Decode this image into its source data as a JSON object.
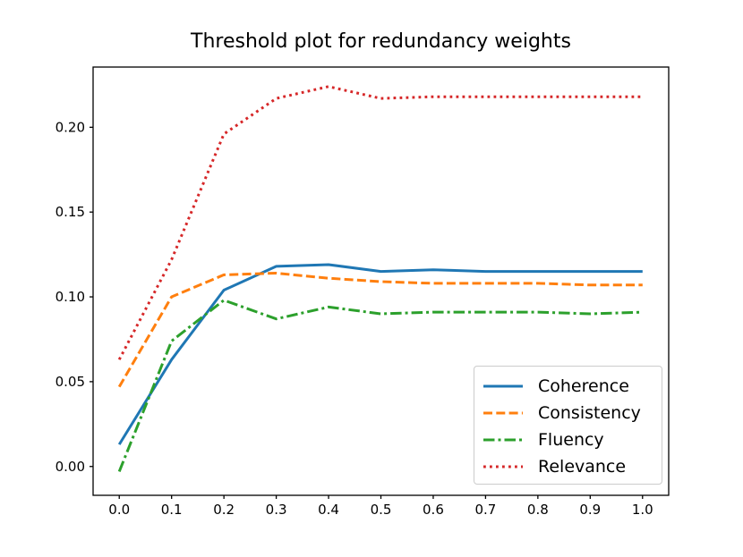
{
  "figure": {
    "background_color": "#ffffff",
    "frame_color": "#000000",
    "tick_label_color": "#000000",
    "legend_border_color": "#cccccc"
  },
  "chart_data": {
    "type": "line",
    "title": "Threshold plot for redundancy weights",
    "xlabel": "",
    "ylabel": "",
    "grid": false,
    "legend_position": "lower right",
    "xlim": [
      -0.05,
      1.05
    ],
    "ylim": [
      -0.017,
      0.2355
    ],
    "xticks": [
      0.0,
      0.1,
      0.2,
      0.3,
      0.4,
      0.5,
      0.6,
      0.7,
      0.8,
      0.9,
      1.0
    ],
    "xtick_labels": [
      "0.0",
      "0.1",
      "0.2",
      "0.3",
      "0.4",
      "0.5",
      "0.6",
      "0.7",
      "0.8",
      "0.9",
      "1.0"
    ],
    "yticks": [
      0.0,
      0.05,
      0.1,
      0.15,
      0.2
    ],
    "ytick_labels": [
      "0.00",
      "0.05",
      "0.10",
      "0.15",
      "0.20"
    ],
    "x": [
      0.0,
      0.1,
      0.2,
      0.3,
      0.4,
      0.5,
      0.6,
      0.7,
      0.8,
      0.9,
      1.0
    ],
    "series": [
      {
        "name": "Coherence",
        "color": "#1f77b4",
        "linestyle": "solid",
        "values": [
          0.013,
          0.063,
          0.104,
          0.118,
          0.119,
          0.115,
          0.116,
          0.115,
          0.115,
          0.115,
          0.115
        ]
      },
      {
        "name": "Consistency",
        "color": "#ff7f0e",
        "linestyle": "dashed",
        "values": [
          0.047,
          0.1,
          0.113,
          0.114,
          0.111,
          0.109,
          0.108,
          0.108,
          0.108,
          0.107,
          0.107
        ]
      },
      {
        "name": "Fluency",
        "color": "#2ca02c",
        "linestyle": "dashdot",
        "values": [
          -0.003,
          0.074,
          0.098,
          0.087,
          0.094,
          0.09,
          0.091,
          0.091,
          0.091,
          0.09,
          0.091
        ]
      },
      {
        "name": "Relevance",
        "color": "#d62728",
        "linestyle": "dotted",
        "values": [
          0.063,
          0.122,
          0.196,
          0.217,
          0.224,
          0.217,
          0.218,
          0.218,
          0.218,
          0.218,
          0.218
        ]
      }
    ]
  }
}
